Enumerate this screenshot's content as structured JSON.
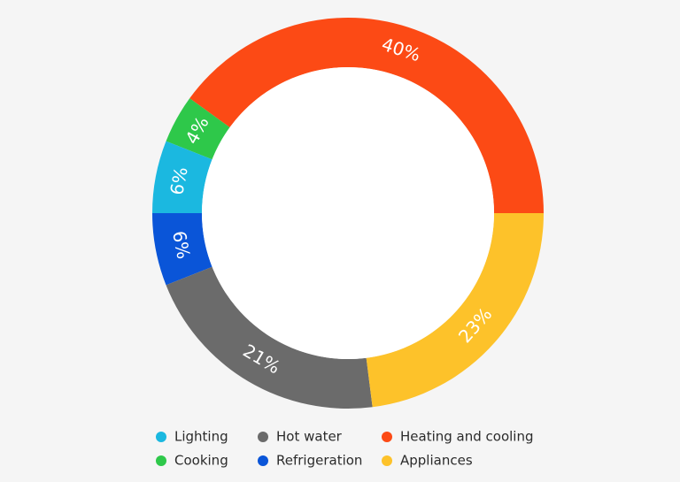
{
  "chart_data": {
    "type": "donut",
    "categories": [
      "Heating and cooling",
      "Cooking",
      "Lighting",
      "Refrigeration",
      "Hot water",
      "Appliances"
    ],
    "values": [
      40,
      4,
      6,
      6,
      21,
      23
    ],
    "value_labels": [
      "40%",
      "4%",
      "6%",
      "6%",
      "21%",
      "23%"
    ],
    "colors": [
      "#fc4a15",
      "#2ec84a",
      "#1bb8e0",
      "#0a55d8",
      "#6b6b6b",
      "#fdc22a"
    ]
  }
}
